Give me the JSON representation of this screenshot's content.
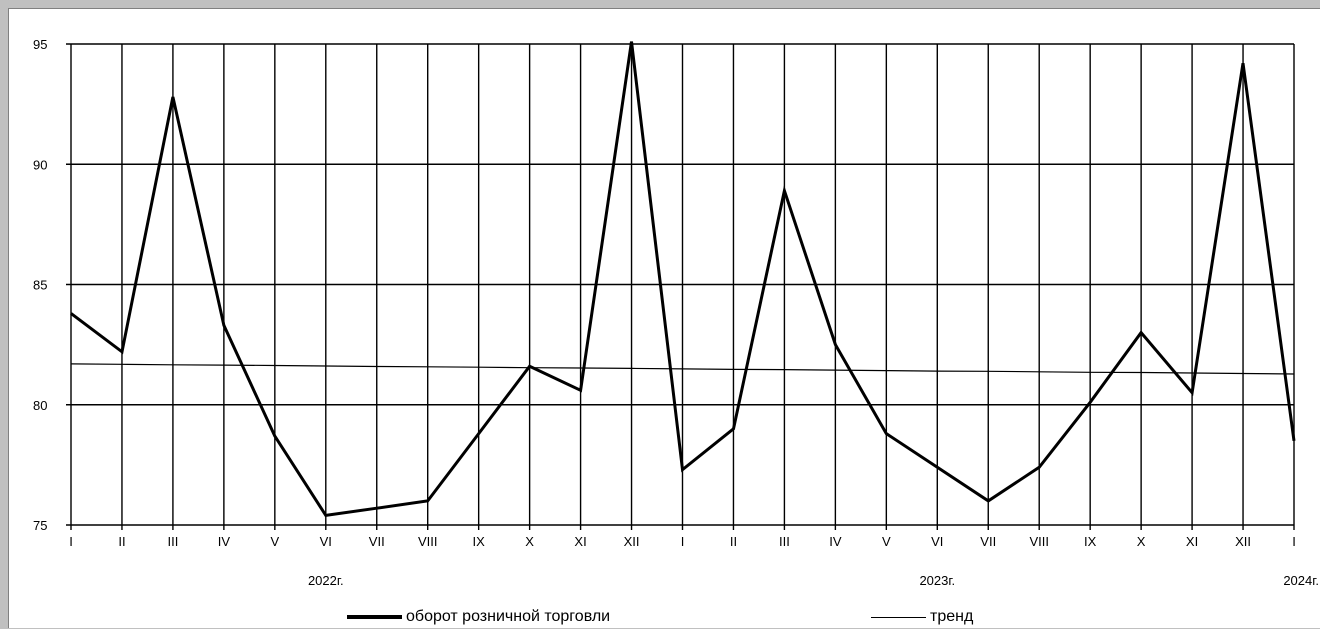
{
  "chart_data": {
    "type": "line",
    "title": "",
    "xlabel": "",
    "ylabel": "",
    "ylim": [
      75,
      95
    ],
    "yticks": [
      75,
      80,
      85,
      90,
      95
    ],
    "grid": true,
    "legend_position": "bottom",
    "x": [
      "I",
      "II",
      "III",
      "IV",
      "V",
      "VI",
      "VII",
      "VIII",
      "IX",
      "X",
      "XI",
      "XII",
      "I",
      "II",
      "III",
      "IV",
      "V",
      "VI",
      "VII",
      "VIII",
      "IX",
      "X",
      "XI",
      "XII",
      "I"
    ],
    "year_labels": [
      {
        "x_index": 5,
        "label": "2022г."
      },
      {
        "x_index": 17,
        "label": "2023г."
      },
      {
        "x_index": 24,
        "label": "2024г."
      }
    ],
    "series": [
      {
        "name": "оборот розничной торговли",
        "values": [
          83.8,
          82.2,
          92.8,
          83.3,
          78.7,
          75.4,
          75.7,
          76.0,
          78.8,
          81.6,
          80.6,
          95.1,
          77.3,
          79.0,
          88.9,
          82.5,
          78.8,
          77.4,
          76.0,
          77.4,
          80.1,
          83.0,
          80.5,
          94.2,
          78.5
        ],
        "color": "#000000",
        "line_width": "thick"
      },
      {
        "name": "тренд",
        "values": [
          81.7,
          81.68,
          81.66,
          81.65,
          81.63,
          81.61,
          81.59,
          81.58,
          81.56,
          81.54,
          81.53,
          81.51,
          81.49,
          81.47,
          81.46,
          81.44,
          81.42,
          81.4,
          81.39,
          81.37,
          81.35,
          81.34,
          81.32,
          81.3,
          81.28
        ],
        "color": "#000000",
        "line_width": "thin"
      }
    ]
  },
  "legend": {
    "series1_label": "оборот розничной торговли",
    "series2_label": "тренд"
  }
}
